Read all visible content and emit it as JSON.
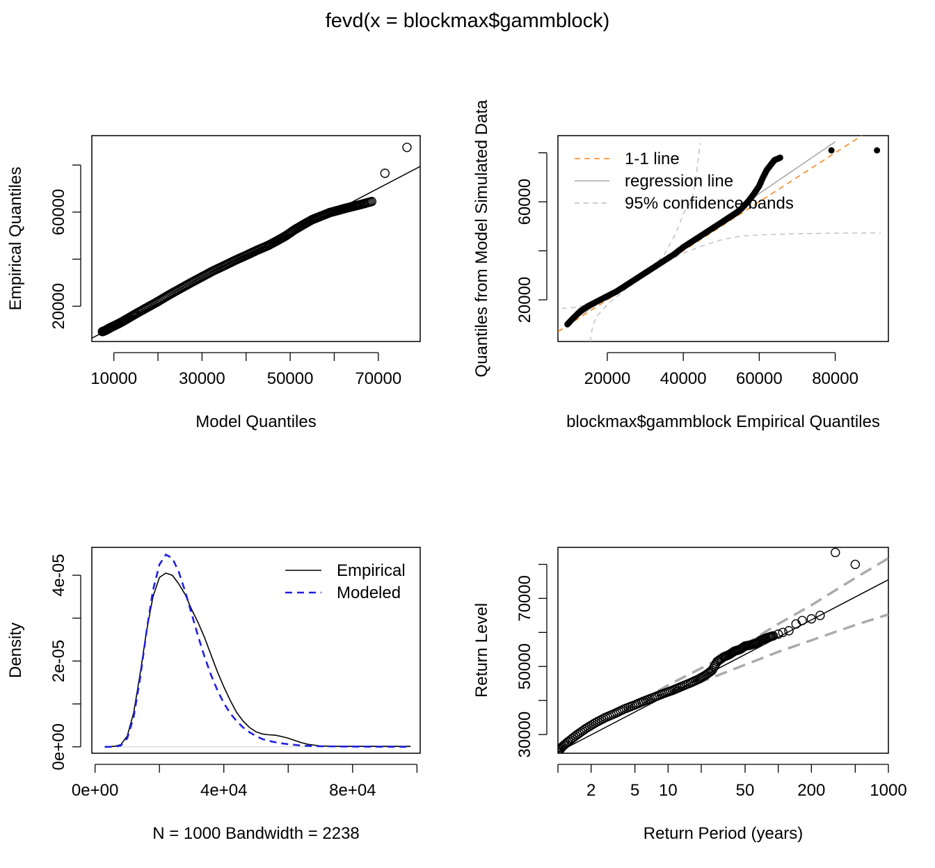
{
  "title": "fevd(x = blockmax$gammblock)",
  "chart_data": [
    {
      "type": "scatter",
      "xlabel": "Model Quantiles",
      "ylabel": "Empirical Quantiles",
      "xlim": [
        5000,
        79500
      ],
      "ylim": [
        5000,
        92500
      ],
      "xticks": [
        10000,
        20000,
        30000,
        40000,
        50000,
        60000,
        70000
      ],
      "xticklabels": [
        "10000",
        "",
        "30000",
        "",
        "50000",
        "",
        "70000"
      ],
      "yticks": [
        20000,
        40000,
        60000,
        80000
      ],
      "yticklabels": [
        "20000",
        "",
        "60000",
        ""
      ],
      "points_x": [
        7400,
        8200,
        9000,
        10000,
        11500,
        13000,
        15000,
        17500,
        20000,
        22500,
        25000,
        27500,
        30000,
        32500,
        35000,
        37500,
        40000,
        42500,
        45000,
        47000,
        49000,
        51000,
        53000,
        55000,
        57000,
        59000,
        61000,
        62500,
        64000,
        66000,
        68500,
        71500,
        76500
      ],
      "points_y": [
        9200,
        9800,
        10700,
        11600,
        13000,
        14600,
        16800,
        19400,
        22000,
        24800,
        27400,
        30000,
        32500,
        35000,
        37200,
        39500,
        41600,
        43800,
        45800,
        47800,
        49900,
        52500,
        54700,
        56800,
        58300,
        59800,
        60800,
        61600,
        62300,
        63200,
        64500,
        76500,
        87500
      ],
      "line": {
        "intercept": 1500,
        "slope": 0.98
      }
    },
    {
      "type": "scatter",
      "xlabel": "blockmax$gammblock Empirical Quantiles",
      "ylabel": "Quantiles from Model Simulated Data",
      "xlim": [
        7000,
        94000
      ],
      "ylim": [
        3000,
        87000
      ],
      "xticks": [
        20000,
        40000,
        60000,
        80000
      ],
      "xticklabels": [
        "20000",
        "40000",
        "60000",
        "80000"
      ],
      "yticks": [
        20000,
        40000,
        60000,
        80000
      ],
      "yticklabels": [
        "20000",
        "",
        "60000",
        ""
      ],
      "legend": [
        "1-1 line",
        "regression line",
        "95% confidence bands"
      ],
      "legend_position": "top-left",
      "points_x": [
        9500,
        11000,
        13000,
        15000,
        17500,
        20000,
        22500,
        25000,
        27500,
        30000,
        32500,
        35000,
        37500,
        40000,
        42500,
        45000,
        47500,
        50000,
        52000,
        54000,
        55500,
        57000,
        58500,
        60000,
        61000,
        62000,
        63000,
        64000,
        65500,
        79000,
        91000
      ],
      "points_y": [
        10000,
        12500,
        15500,
        17500,
        19500,
        21500,
        23500,
        26000,
        28500,
        31000,
        33500,
        36000,
        38500,
        41500,
        44000,
        46500,
        49000,
        51500,
        53500,
        55500,
        57500,
        60000,
        63000,
        66500,
        70000,
        73000,
        75000,
        77000,
        78000,
        81000,
        81000
      ],
      "colors": {
        "one_to_one": "#ff7f0e",
        "regression": "#aaaaaa",
        "bands": "#bdbdbd",
        "points": "#000000"
      }
    },
    {
      "type": "line",
      "xlabel": "N = 1000   Bandwidth = 2238",
      "ylabel": "Density",
      "xlim": [
        -1000,
        101000
      ],
      "ylim": [
        -1.5e-06,
        4.65e-05
      ],
      "xticks": [
        0,
        20000,
        40000,
        60000,
        80000,
        100000
      ],
      "xticklabels": [
        "0e+00",
        "",
        "4e+04",
        "",
        "8e+04",
        ""
      ],
      "yticks": [
        0,
        1e-05,
        2e-05,
        3e-05,
        4e-05
      ],
      "yticklabels": [
        "0e+00",
        "",
        "2e-05",
        "",
        "4e-05"
      ],
      "legend": [
        "Empirical",
        "Modeled"
      ],
      "legend_position": "top-right",
      "series": [
        {
          "name": "Empirical",
          "color": "#000000",
          "x": [
            3000,
            6000,
            8000,
            10000,
            12000,
            14000,
            16000,
            18000,
            20000,
            22000,
            24000,
            26000,
            28000,
            30000,
            32000,
            34000,
            36000,
            38000,
            40000,
            42000,
            44000,
            46000,
            48000,
            50000,
            52000,
            54000,
            56000,
            58000,
            60000,
            62000,
            64000,
            66000,
            70000,
            75000,
            80000,
            85000,
            90000,
            98000
          ],
          "y": [
            0,
            1e-07,
            5e-07,
            2.5e-06,
            8e-06,
            1.7e-05,
            2.7e-05,
            3.5e-05,
            3.95e-05,
            4.05e-05,
            4e-05,
            3.8e-05,
            3.55e-05,
            3.2e-05,
            2.9e-05,
            2.55e-05,
            2.15e-05,
            1.75e-05,
            1.4e-05,
            1.08e-05,
            8e-06,
            6e-06,
            4.5e-06,
            3.5e-06,
            3e-06,
            2.8e-06,
            2.7e-06,
            2.4e-06,
            2e-06,
            1.5e-06,
            1e-06,
            6e-07,
            2e-07,
            1e-07,
            1e-07,
            1e-07,
            1e-07,
            1e-07
          ]
        },
        {
          "name": "Modeled",
          "color": "#1f1fe6",
          "x": [
            3000,
            6000,
            8000,
            10000,
            12000,
            14000,
            16000,
            18000,
            20000,
            22000,
            24000,
            26000,
            28000,
            30000,
            32000,
            34000,
            36000,
            38000,
            40000,
            42000,
            44000,
            46000,
            48000,
            50000,
            52000,
            55000,
            58000,
            60000,
            64000,
            68000,
            72000,
            78000,
            85000,
            92000,
            98000
          ],
          "y": [
            0,
            0,
            3e-07,
            2e-06,
            7e-06,
            1.6e-05,
            2.7e-05,
            3.65e-05,
            4.25e-05,
            4.48e-05,
            4.4e-05,
            4.08e-05,
            3.62e-05,
            3.1e-05,
            2.58e-05,
            2.1e-05,
            1.68e-05,
            1.32e-05,
            1.02e-05,
            7.8e-06,
            6e-06,
            4.5e-06,
            3.4e-06,
            2.5e-06,
            1.8e-06,
            1.2e-06,
            8e-07,
            6e-07,
            3e-07,
            1.5e-07,
            1e-07,
            5e-08,
            2e-08,
            1e-08,
            0
          ]
        }
      ]
    },
    {
      "type": "scatter",
      "xlabel": "Return Period (years)",
      "ylabel": "Return Level",
      "xscale": "log",
      "xlim": [
        1,
        1000
      ],
      "ylim": [
        24500,
        85000
      ],
      "xticks": [
        1,
        2,
        5,
        10,
        20,
        50,
        100,
        200,
        500,
        1000
      ],
      "xticklabels": [
        "",
        "2",
        "5",
        "10",
        "",
        "50",
        "",
        "200",
        "",
        "1000"
      ],
      "yticks": [
        30000,
        40000,
        50000,
        60000,
        70000,
        80000
      ],
      "yticklabels": [
        "30000",
        "",
        "50000",
        "",
        "70000",
        ""
      ],
      "points_x": [
        1.0,
        1.1,
        1.25,
        1.5,
        1.8,
        2.2,
        2.7,
        3.3,
        4.0,
        5.0,
        6.0,
        7.5,
        9.0,
        11,
        13,
        16,
        19,
        22,
        25,
        28,
        32,
        36,
        40,
        45,
        50,
        56,
        63,
        70,
        80,
        90,
        100,
        110,
        125,
        145,
        165,
        200,
        240,
        330,
        500
      ],
      "points_y": [
        24800,
        26500,
        28000,
        30000,
        31800,
        33500,
        35000,
        36200,
        37500,
        38700,
        39800,
        41000,
        42000,
        43000,
        44000,
        45200,
        46300,
        47500,
        48800,
        51500,
        52800,
        53500,
        54500,
        55000,
        56000,
        56300,
        56800,
        57800,
        58500,
        59000,
        59500,
        60000,
        60500,
        62500,
        63500,
        64000,
        65000,
        83500,
        80000
      ],
      "fit": {
        "x": [
          1,
          1000
        ],
        "y": [
          24800,
          75500
        ]
      },
      "band_upper": {
        "x": [
          4,
          10,
          20,
          50,
          100,
          200,
          500,
          1000
        ],
        "y": [
          37000,
          44500,
          49500,
          56500,
          62500,
          68000,
          76000,
          81800
        ]
      },
      "band_lower": {
        "x": [
          4,
          10,
          20,
          50,
          100,
          200,
          500,
          1000
        ],
        "y": [
          37000,
          42300,
          45500,
          50500,
          54300,
          57700,
          62200,
          65300
        ]
      },
      "colors": {
        "fit": "#000000",
        "bands": "#aaaaaa"
      }
    }
  ]
}
